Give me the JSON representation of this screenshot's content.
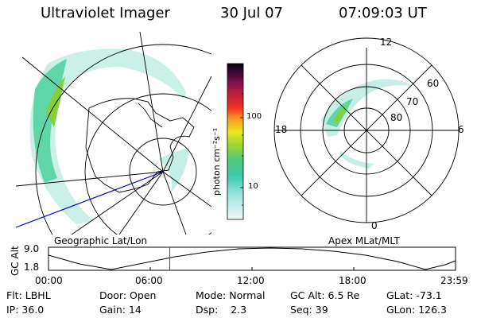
{
  "header": {
    "title": "Ultraviolet Imager",
    "date": "30 Jul 07",
    "time": "07:09:03 UT"
  },
  "colorbar": {
    "label": "photon cm⁻²s⁻¹",
    "ticks": [
      "100",
      "10"
    ]
  },
  "left_panel": {
    "caption": "Geographic Lat/Lon"
  },
  "right_panel": {
    "caption": "Apex MLat/MLT",
    "mlt_labels": {
      "top": "12",
      "bottom": "0",
      "left": "18",
      "right": "6"
    },
    "lat_labels": [
      "60",
      "70",
      "80"
    ]
  },
  "altitude_plot": {
    "ylabel": "GC Alt",
    "yticks": [
      "9.0",
      "1.8"
    ],
    "xticks": [
      "00:00",
      "06:00",
      "12:00",
      "18:00",
      "23:59"
    ],
    "marker_time_hours": 7.15
  },
  "info": [
    [
      {
        "k": "Flt:",
        "v": "LBHL"
      },
      {
        "k": "Door:",
        "v": "Open"
      },
      {
        "k": "Mode:",
        "v": "Normal"
      },
      {
        "k": "GC Alt:",
        "v": "6.5 Re"
      },
      {
        "k": "GLat:",
        "v": "-73.1"
      }
    ],
    [
      {
        "k": "IP:",
        "v": "36.0"
      },
      {
        "k": "Gain:",
        "v": "14"
      },
      {
        "k": "Dsp:",
        "v": "2.3"
      },
      {
        "k": "Seq:",
        "v": "39"
      },
      {
        "k": "GLon:",
        "v": "126.3"
      }
    ]
  ],
  "colors": {
    "aurora_low": "#b9ece4",
    "aurora_mid": "#4fd49a",
    "aurora_high": "#7ccc2a",
    "track": "#0000cc",
    "marker": "#ff0000"
  }
}
